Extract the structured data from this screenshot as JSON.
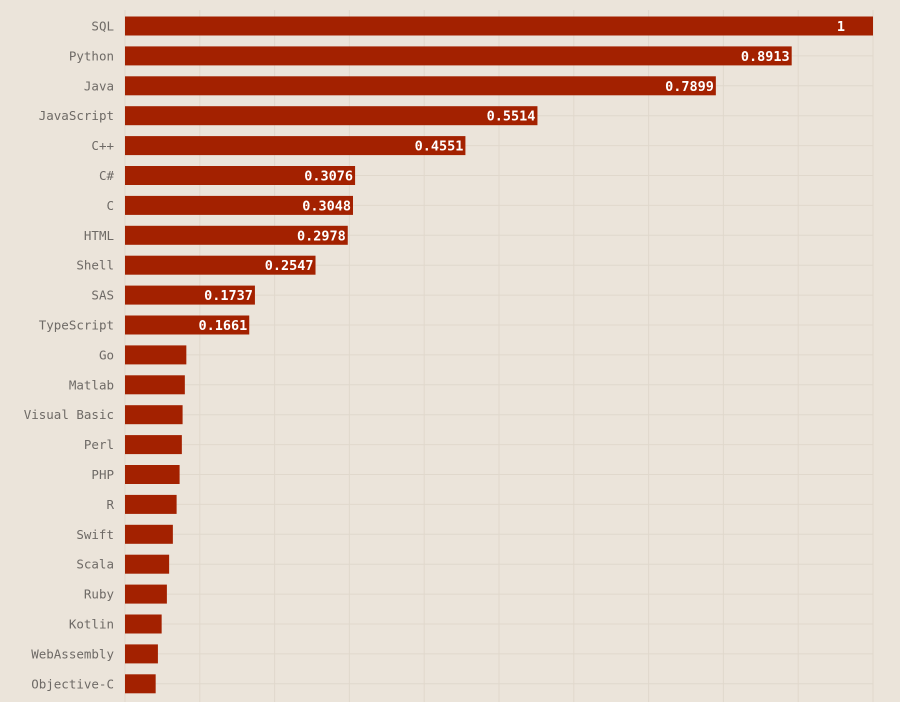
{
  "chart_data": {
    "type": "bar",
    "orientation": "horizontal",
    "title": "",
    "xlabel": "",
    "ylabel": "",
    "categories": [
      "SQL",
      "Python",
      "Java",
      "JavaScript",
      "C++",
      "C#",
      "C",
      "HTML",
      "Shell",
      "SAS",
      "TypeScript",
      "Go",
      "Matlab",
      "Visual Basic",
      "Perl",
      "PHP",
      "R",
      "Swift",
      "Scala",
      "Ruby",
      "Kotlin",
      "WebAssembly",
      "Objective-C"
    ],
    "values": [
      1,
      0.8913,
      0.7899,
      0.5514,
      0.4551,
      0.3076,
      0.3048,
      0.2978,
      0.2547,
      0.1737,
      0.1661,
      0.082,
      0.08,
      0.077,
      0.076,
      0.073,
      0.069,
      0.064,
      0.059,
      0.056,
      0.049,
      0.044,
      0.041
    ],
    "value_labels": [
      "1",
      "0.8913",
      "0.7899",
      "0.5514",
      "0.4551",
      "0.3076",
      "0.3048",
      "0.2978",
      "0.2547",
      "0.1737",
      "0.1661",
      "",
      "",
      "",
      "",
      "",
      "",
      "",
      "",
      "",
      "",
      "",
      ""
    ],
    "xlim": [
      0,
      1
    ],
    "grid": true,
    "legend": "none",
    "colors": {
      "bar": "#a32100",
      "background": "#ebe4da",
      "grid": "#e0d8cc",
      "category_text": "#6e6a66",
      "value_text": "#ffffff"
    }
  }
}
